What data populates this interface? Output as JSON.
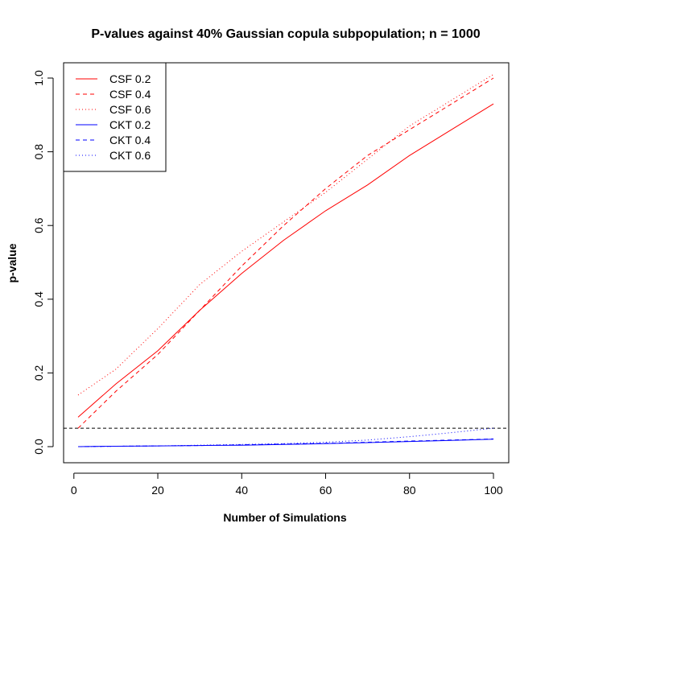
{
  "chart_data": {
    "type": "line",
    "title": "P-values against 40% Gaussian copula subpopulation; n = 1000",
    "xlabel": "Number of Simulations",
    "ylabel": "p-value",
    "xlim": [
      1,
      100
    ],
    "ylim": [
      0,
      1.0
    ],
    "x_ticks": [
      "0",
      "20",
      "40",
      "60",
      "80",
      "100"
    ],
    "y_ticks": [
      "0.0",
      "0.2",
      "0.4",
      "0.6",
      "0.8",
      "1.0"
    ],
    "reference_line": {
      "y": 0.05,
      "style": "dashed",
      "color": "#000000"
    },
    "legend_position": "top-left",
    "grid": false,
    "x": [
      1,
      10,
      20,
      30,
      40,
      50,
      60,
      70,
      80,
      90,
      100
    ],
    "series": [
      {
        "name": "CSF 0.2",
        "color": "#ff0000",
        "style": "solid",
        "values": [
          0.08,
          0.17,
          0.26,
          0.37,
          0.47,
          0.56,
          0.64,
          0.71,
          0.79,
          0.86,
          0.93
        ]
      },
      {
        "name": "CSF 0.4",
        "color": "#ff0000",
        "style": "dashed",
        "values": [
          0.05,
          0.15,
          0.25,
          0.37,
          0.49,
          0.6,
          0.7,
          0.79,
          0.86,
          0.93,
          1.0
        ]
      },
      {
        "name": "CSF 0.6",
        "color": "#ff0000",
        "style": "dotted",
        "values": [
          0.14,
          0.21,
          0.32,
          0.44,
          0.53,
          0.61,
          0.69,
          0.78,
          0.87,
          0.94,
          1.01
        ]
      },
      {
        "name": "CKT 0.2",
        "color": "#0000ff",
        "style": "solid",
        "values": [
          0.0,
          0.001,
          0.002,
          0.003,
          0.004,
          0.006,
          0.008,
          0.011,
          0.014,
          0.017,
          0.02
        ]
      },
      {
        "name": "CKT 0.4",
        "color": "#0000ff",
        "style": "dashed",
        "values": [
          0.0,
          0.001,
          0.002,
          0.003,
          0.005,
          0.007,
          0.009,
          0.012,
          0.015,
          0.018,
          0.021
        ]
      },
      {
        "name": "CKT 0.6",
        "color": "#0000ff",
        "style": "dotted",
        "values": [
          0.0,
          0.001,
          0.002,
          0.004,
          0.006,
          0.008,
          0.012,
          0.018,
          0.027,
          0.038,
          0.05
        ]
      }
    ]
  }
}
